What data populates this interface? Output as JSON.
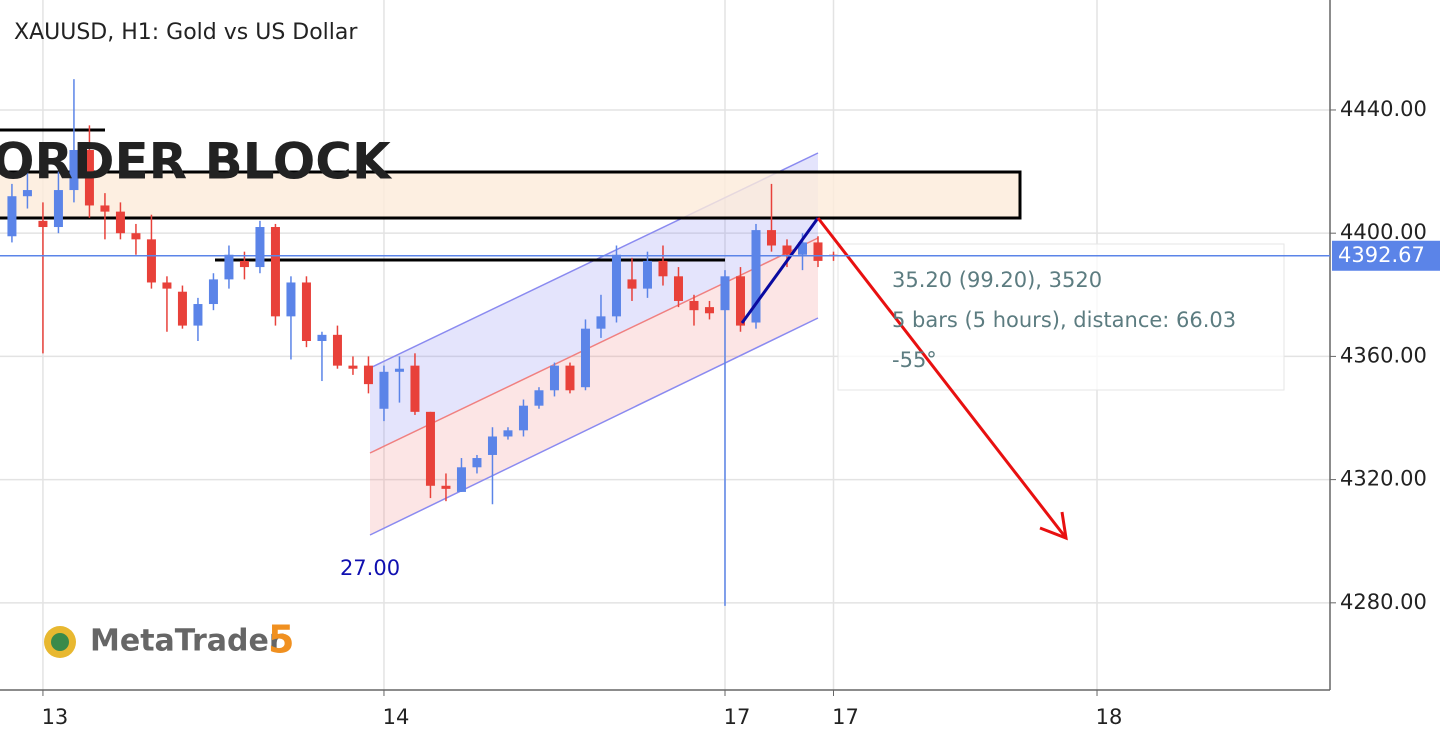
{
  "chart_data": {
    "type": "candlestick",
    "title": "XAUUSD, H1: Gold vs US Dollar",
    "x": [
      0,
      1,
      2,
      3,
      4,
      5,
      6,
      7,
      8,
      9,
      10,
      11,
      12,
      13,
      14,
      15,
      16,
      17,
      18,
      19,
      20,
      21,
      22,
      23,
      24,
      25,
      26,
      27,
      28,
      29,
      30,
      31,
      32,
      33,
      34,
      35,
      36,
      37,
      38,
      39,
      40,
      41,
      42,
      43,
      44,
      45,
      46,
      47,
      48,
      49,
      50,
      51,
      52,
      53
    ],
    "open": [
      4399,
      4412,
      4404,
      4402,
      4414,
      4427,
      4409,
      4407,
      4400,
      4398,
      4384,
      4381,
      4370,
      4377,
      4385,
      4391,
      4389,
      4402,
      4373,
      4384,
      4365,
      4367,
      4357,
      4357,
      4343,
      4355,
      4357,
      4342,
      4318,
      4316,
      4324,
      4328,
      4334,
      4336,
      4344,
      4349,
      4357,
      4350,
      4369,
      4373,
      4385,
      4382,
      4391,
      4386,
      4378,
      4376,
      4375,
      4386,
      4371,
      4401,
      4396,
      4393,
      4397,
      4393
    ],
    "high": [
      4416,
      4420,
      4410,
      4420,
      4450,
      4435,
      4413,
      4410,
      4403,
      4406,
      4386,
      4383,
      4379,
      4387,
      4396,
      4394,
      4404,
      4403,
      4386,
      4386,
      4368,
      4370,
      4360,
      4360,
      4357,
      4360,
      4361,
      4342,
      4322,
      4327,
      4328,
      4337,
      4337,
      4346,
      4350,
      4358,
      4358,
      4372,
      4380,
      4396,
      4392,
      4394,
      4396,
      4389,
      4380,
      4378,
      4388,
      4389,
      4403,
      4416,
      4398,
      4400,
      4399,
      4394
    ],
    "low": [
      4397,
      4408,
      4361,
      4400,
      4410,
      4405,
      4398,
      4398,
      4393,
      4382,
      4368,
      4369,
      4365,
      4375,
      4382,
      4385,
      4387,
      4370,
      4359,
      4363,
      4352,
      4356,
      4354,
      4348,
      4339,
      4345,
      4341,
      4314,
      4313,
      4316,
      4322,
      4312,
      4333,
      4334,
      4343,
      4347,
      4348,
      4349,
      4366,
      4371,
      4378,
      4379,
      4383,
      4376,
      4370,
      4372,
      4279,
      4368,
      4369,
      4394,
      4389,
      4388,
      4389,
      4391
    ],
    "close": [
      4412,
      4414,
      4402,
      4414,
      4427,
      4409,
      4407,
      4400,
      4398,
      4384,
      4382,
      4370,
      4377,
      4385,
      4393,
      4389,
      4402,
      4373,
      4384,
      4365,
      4367,
      4357,
      4356,
      4351,
      4355,
      4356,
      4342,
      4318,
      4317,
      4324,
      4327,
      4334,
      4336,
      4344,
      4349,
      4357,
      4349,
      4369,
      4373,
      4393,
      4382,
      4391,
      4386,
      4378,
      4375,
      4374,
      4386,
      4370,
      4401,
      4396,
      4393,
      4397,
      4391,
      4392.67
    ],
    "up_color": "#5b84e8",
    "down_color": "#e8413a",
    "xlim": [
      -0.77,
      85.03
    ],
    "ylim": [
      4251.7,
      4475.7
    ],
    "xticks": [
      {
        "value": 2,
        "label": "13"
      },
      {
        "value": 24,
        "label": "14"
      },
      {
        "value": 46,
        "label": "17"
      },
      {
        "value": 53,
        "label": "17"
      },
      {
        "value": 70,
        "label": "18"
      }
    ],
    "yticks": [
      {
        "value": 4280,
        "label": "4280.00"
      },
      {
        "value": 4320,
        "label": "4320.00"
      },
      {
        "value": 4360,
        "label": "4360.00"
      },
      {
        "value": 4400,
        "label": "4400.00"
      },
      {
        "value": 4440,
        "label": "4440.00"
      }
    ],
    "grid": true,
    "current_price": 4392.67,
    "annotations": {
      "zone": "ORDER BLOCK",
      "channel_width": "27.00",
      "measure_price": "35.20 (99.20), 3520",
      "measure_bars": "5 bars (5 hours), distance: 66.03",
      "measure_angle": "-55°"
    },
    "logo": {
      "name": "MetaTrader",
      "version": "5"
    }
  }
}
